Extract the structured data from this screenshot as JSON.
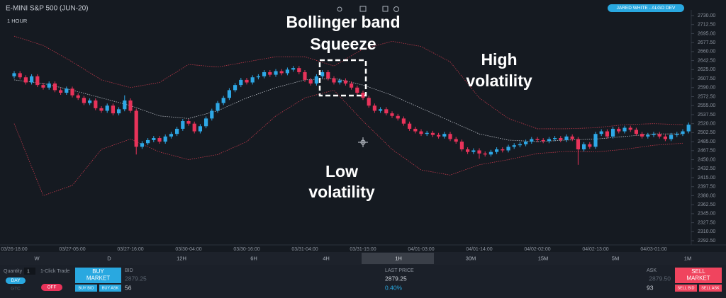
{
  "header": {
    "symbol": "E-MINI S&P 500 (JUN-20)",
    "interval": "1 HOUR",
    "user": "JARED WHITE - ALGO DEV"
  },
  "annotations": {
    "squeeze": [
      "Bollinger band",
      "Squeeze"
    ],
    "high": [
      "High",
      "volatility"
    ],
    "low": [
      "Low",
      "volatility"
    ]
  },
  "chart_data": {
    "type": "candlestick",
    "categories": [
      "03/26-18:00",
      null,
      null,
      null,
      null,
      null,
      null,
      null,
      null,
      null,
      "03/27-05:00",
      null,
      null,
      null,
      null,
      null,
      null,
      null,
      null,
      null,
      "03/27-16:00",
      null,
      null,
      null,
      null,
      null,
      null,
      null,
      null,
      null,
      "03/30-04:00",
      null,
      null,
      null,
      null,
      null,
      null,
      null,
      null,
      null,
      "03/30-16:00",
      null,
      null,
      null,
      null,
      null,
      null,
      null,
      null,
      null,
      "03/31-04:00",
      null,
      null,
      null,
      null,
      null,
      null,
      null,
      null,
      null,
      "03/31-15:00",
      null,
      null,
      null,
      null,
      null,
      null,
      null,
      null,
      null,
      "04/01-03:00",
      null,
      null,
      null,
      null,
      null,
      null,
      null,
      null,
      null,
      "04/01-14:00",
      null,
      null,
      null,
      null,
      null,
      null,
      null,
      null,
      null,
      "04/02-02:00",
      null,
      null,
      null,
      null,
      null,
      null,
      null,
      null,
      null,
      "04/02-13:00",
      null,
      null,
      null,
      null,
      null,
      null,
      null,
      null,
      null,
      "04/03-01:00",
      null,
      null,
      null,
      null,
      null,
      null
    ],
    "open": [
      2612,
      2618,
      2610,
      2600,
      2612,
      2595,
      2590,
      2598,
      2585,
      2580,
      2588,
      2575,
      2570,
      2560,
      2565,
      2550,
      2545,
      2555,
      2540,
      2548,
      2565,
      2545,
      2475,
      2482,
      2488,
      2492,
      2485,
      2495,
      2500,
      2510,
      2525,
      2520,
      2505,
      2515,
      2530,
      2545,
      2560,
      2570,
      2585,
      2595,
      2605,
      2600,
      2610,
      2612,
      2620,
      2615,
      2622,
      2618,
      2625,
      2628,
      2620,
      2605,
      2598,
      2612,
      2620,
      2608,
      2600,
      2604,
      2598,
      2590,
      2580,
      2570,
      2555,
      2545,
      2548,
      2540,
      2535,
      2530,
      2520,
      2510,
      2505,
      2500,
      2502,
      2498,
      2495,
      2500,
      2490,
      2485,
      2470,
      2465,
      2468,
      2462,
      2460,
      2465,
      2470,
      2468,
      2475,
      2478,
      2480,
      2485,
      2490,
      2488,
      2486,
      2490,
      2492,
      2488,
      2495,
      2490,
      2470,
      2480,
      2475,
      2500,
      2505,
      2495,
      2510,
      2505,
      2512,
      2508,
      2500,
      2495,
      2498,
      2500,
      2495,
      2490,
      2498,
      2500,
      2505
    ],
    "high": [
      2622,
      2622,
      2614,
      2616,
      2616,
      2599,
      2602,
      2602,
      2589,
      2592,
      2592,
      2579,
      2574,
      2569,
      2569,
      2554,
      2559,
      2559,
      2552,
      2575,
      2569,
      2549,
      2486,
      2492,
      2496,
      2496,
      2499,
      2504,
      2514,
      2529,
      2529,
      2524,
      2519,
      2534,
      2549,
      2564,
      2574,
      2589,
      2599,
      2609,
      2609,
      2614,
      2616,
      2624,
      2624,
      2626,
      2626,
      2629,
      2632,
      2632,
      2624,
      2609,
      2616,
      2624,
      2624,
      2612,
      2608,
      2608,
      2602,
      2594,
      2584,
      2574,
      2559,
      2552,
      2552,
      2544,
      2539,
      2534,
      2524,
      2514,
      2509,
      2506,
      2506,
      2502,
      2504,
      2504,
      2494,
      2489,
      2474,
      2472,
      2472,
      2466,
      2469,
      2474,
      2474,
      2479,
      2482,
      2484,
      2489,
      2494,
      2494,
      2492,
      2494,
      2496,
      2496,
      2499,
      2499,
      2494,
      2484,
      2484,
      2504,
      2509,
      2509,
      2514,
      2514,
      2516,
      2516,
      2512,
      2504,
      2502,
      2504,
      2504,
      2499,
      2502,
      2504,
      2509,
      2522
    ],
    "low": [
      2608,
      2606,
      2596,
      2596,
      2591,
      2586,
      2586,
      2581,
      2576,
      2576,
      2571,
      2566,
      2556,
      2556,
      2546,
      2541,
      2541,
      2536,
      2536,
      2544,
      2541,
      2460,
      2471,
      2478,
      2484,
      2481,
      2481,
      2491,
      2496,
      2506,
      2516,
      2501,
      2501,
      2511,
      2526,
      2541,
      2556,
      2566,
      2581,
      2591,
      2596,
      2596,
      2606,
      2608,
      2611,
      2611,
      2614,
      2614,
      2621,
      2616,
      2601,
      2594,
      2594,
      2608,
      2604,
      2596,
      2596,
      2594,
      2586,
      2576,
      2566,
      2551,
      2541,
      2541,
      2536,
      2531,
      2526,
      2516,
      2506,
      2501,
      2496,
      2496,
      2494,
      2491,
      2491,
      2486,
      2481,
      2466,
      2461,
      2461,
      2452,
      2456,
      2456,
      2461,
      2464,
      2464,
      2471,
      2474,
      2476,
      2481,
      2484,
      2482,
      2482,
      2486,
      2484,
      2484,
      2486,
      2440,
      2466,
      2471,
      2471,
      2496,
      2491,
      2491,
      2501,
      2501,
      2504,
      2496,
      2491,
      2491,
      2494,
      2491,
      2486,
      2486,
      2494,
      2496,
      2501
    ],
    "close": [
      2618,
      2610,
      2600,
      2612,
      2595,
      2590,
      2598,
      2585,
      2580,
      2588,
      2575,
      2570,
      2560,
      2565,
      2550,
      2545,
      2555,
      2540,
      2548,
      2565,
      2545,
      2475,
      2482,
      2488,
      2492,
      2485,
      2495,
      2500,
      2510,
      2525,
      2520,
      2505,
      2515,
      2530,
      2545,
      2560,
      2570,
      2585,
      2595,
      2605,
      2600,
      2610,
      2612,
      2620,
      2615,
      2622,
      2618,
      2625,
      2628,
      2620,
      2605,
      2598,
      2612,
      2620,
      2608,
      2600,
      2604,
      2598,
      2590,
      2580,
      2570,
      2555,
      2545,
      2548,
      2540,
      2535,
      2530,
      2520,
      2510,
      2505,
      2500,
      2502,
      2498,
      2495,
      2500,
      2490,
      2485,
      2470,
      2465,
      2468,
      2462,
      2460,
      2465,
      2470,
      2468,
      2475,
      2478,
      2480,
      2485,
      2490,
      2488,
      2486,
      2490,
      2492,
      2488,
      2495,
      2490,
      2470,
      2480,
      2475,
      2500,
      2505,
      2495,
      2510,
      2505,
      2512,
      2508,
      2500,
      2495,
      2498,
      2500,
      2495,
      2490,
      2498,
      2500,
      2505,
      2518
    ],
    "up_color": "#2ea8e6",
    "down_color": "#e8335a",
    "bands": {
      "x": [
        0,
        5,
        10,
        15,
        20,
        25,
        30,
        35,
        40,
        45,
        50,
        55,
        60,
        65,
        70,
        75,
        80,
        85,
        90,
        95,
        100,
        105,
        110,
        115
      ],
      "upper": [
        2690,
        2672,
        2640,
        2605,
        2590,
        2600,
        2635,
        2630,
        2640,
        2650,
        2650,
        2632,
        2665,
        2680,
        2670,
        2640,
        2570,
        2530,
        2510,
        2510,
        2512,
        2518,
        2520,
        2518
      ],
      "middle": [
        2605,
        2598,
        2585,
        2570,
        2555,
        2535,
        2530,
        2545,
        2570,
        2590,
        2605,
        2608,
        2595,
        2575,
        2550,
        2525,
        2500,
        2488,
        2485,
        2488,
        2490,
        2495,
        2500,
        2500
      ],
      "lower": [
        2520,
        2380,
        2400,
        2470,
        2490,
        2465,
        2450,
        2460,
        2485,
        2535,
        2570,
        2585,
        2525,
        2470,
        2430,
        2420,
        2440,
        2450,
        2462,
        2466,
        2465,
        2470,
        2478,
        2482
      ],
      "band_color": "#c0394a",
      "middle_color": "#b8bcc4"
    },
    "ylim": [
      2285,
      2741
    ],
    "yticks": [
      {
        "value": 2730,
        "label": "2730.00"
      },
      {
        "value": 2712.5,
        "label": "2712.50"
      },
      {
        "value": 2695,
        "label": "2695.00"
      },
      {
        "value": 2677.5,
        "label": "2677.50"
      },
      {
        "value": 2660,
        "label": "2660.00"
      },
      {
        "value": 2642.5,
        "label": "2642.50"
      },
      {
        "value": 2625,
        "label": "2625.00"
      },
      {
        "value": 2607.5,
        "label": "2607.50"
      },
      {
        "value": 2590,
        "label": "2590.00"
      },
      {
        "value": 2572.5,
        "label": "2572.50"
      },
      {
        "value": 2555,
        "label": "2555.00"
      },
      {
        "value": 2537.5,
        "label": "2537.50"
      },
      {
        "value": 2520,
        "label": "2520.00"
      },
      {
        "value": 2502.5,
        "label": "2502.50"
      },
      {
        "value": 2485,
        "label": "2485.00"
      },
      {
        "value": 2467.5,
        "label": "2467.50"
      },
      {
        "value": 2450,
        "label": "2450.00"
      },
      {
        "value": 2432.5,
        "label": "2432.50"
      },
      {
        "value": 2415,
        "label": "2415.00"
      },
      {
        "value": 2397.5,
        "label": "2397.50"
      },
      {
        "value": 2380,
        "label": "2380.00"
      },
      {
        "value": 2362.5,
        "label": "2362.50"
      },
      {
        "value": 2345,
        "label": "2345.00"
      },
      {
        "value": 2327.5,
        "label": "2327.50"
      },
      {
        "value": 2310,
        "label": "2310.00"
      },
      {
        "value": 2292.5,
        "label": "2292.50"
      }
    ],
    "grid": false
  },
  "timeframes": {
    "items": [
      "W",
      "D",
      "12H",
      "6H",
      "4H",
      "1H",
      "30M",
      "15M",
      "5M",
      "1M"
    ],
    "selected": 5
  },
  "order_panel": {
    "quantity_label": "Quantity",
    "quantity": "1",
    "one_click": "1-Click Trade",
    "tif": [
      "DAY",
      "GTC"
    ],
    "toggle": "OFF",
    "buy": [
      "BUY",
      "MARKET"
    ],
    "buy_bid": "BUY BID",
    "buy_ask": "BUY ASK",
    "bid_label": "BID",
    "bid": "2879.25",
    "bid_size": "56",
    "last_label": "LAST PRICE",
    "last": "2879.25",
    "change": "0.40%",
    "ask_label": "ASK",
    "ask": "2879.50",
    "ask_size": "93",
    "sell": [
      "SELL",
      "MARKET"
    ],
    "sell_bid": "SELL BID",
    "sell_ask": "SELL ASK"
  }
}
